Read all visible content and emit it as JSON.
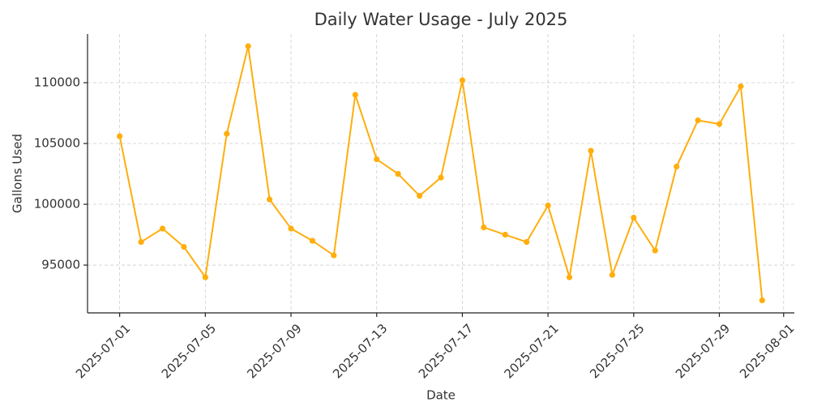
{
  "chart_data": {
    "type": "line",
    "title": "Daily Water Usage - July 2025",
    "x_label": "Date",
    "y_label": "Gallons Used",
    "x": [
      "2025-07-01",
      "2025-07-02",
      "2025-07-03",
      "2025-07-04",
      "2025-07-05",
      "2025-07-06",
      "2025-07-07",
      "2025-07-08",
      "2025-07-09",
      "2025-07-10",
      "2025-07-11",
      "2025-07-12",
      "2025-07-13",
      "2025-07-14",
      "2025-07-15",
      "2025-07-16",
      "2025-07-17",
      "2025-07-18",
      "2025-07-19",
      "2025-07-20",
      "2025-07-21",
      "2025-07-22",
      "2025-07-23",
      "2025-07-24",
      "2025-07-25",
      "2025-07-26",
      "2025-07-27",
      "2025-07-28",
      "2025-07-29",
      "2025-07-30",
      "2025-07-31"
    ],
    "series": [
      {
        "name": "Gallons Used",
        "color": "#ffae0c",
        "values": [
          105600,
          96900,
          98000,
          96500,
          94000,
          105800,
          113000,
          100400,
          98000,
          97000,
          95800,
          109000,
          103700,
          102500,
          100700,
          102200,
          110200,
          98100,
          97500,
          96900,
          99900,
          94000,
          104400,
          94200,
          98900,
          96200,
          103100,
          106900,
          106600,
          109700,
          92100
        ]
      }
    ],
    "xlim": [
      "2025-06-29T12:00",
      "2025-08-01T12:00"
    ],
    "xticks": [
      "2025-07-01",
      "2025-07-05",
      "2025-07-09",
      "2025-07-13",
      "2025-07-17",
      "2025-07-21",
      "2025-07-25",
      "2025-07-29",
      "2025-08-01"
    ],
    "ylim": [
      91070,
      114000
    ],
    "yticks": [
      95000,
      100000,
      105000,
      110000
    ],
    "grid": true
  }
}
